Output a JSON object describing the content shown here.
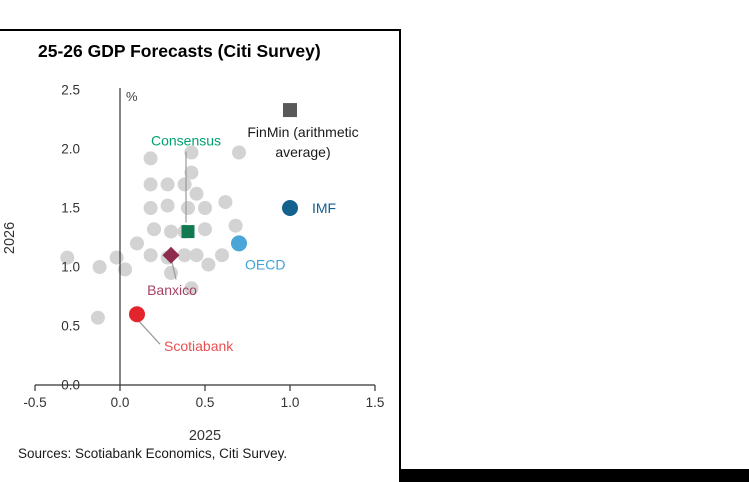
{
  "frame": {
    "sources": "Sources: Scotiabank Economics, Citi Survey."
  },
  "chart_data": {
    "type": "scatter",
    "title": "25-26 GDP Forecasts (Citi Survey)",
    "xlabel": "2025",
    "ylabel": "2026",
    "unit_label": "%",
    "xlim": [
      -0.5,
      1.5
    ],
    "ylim": [
      0.0,
      2.5
    ],
    "grid": false,
    "xticks": {
      "values": [
        -0.5,
        0.0,
        0.5,
        1.0,
        1.5
      ],
      "labels": [
        "-0.5",
        "0.0",
        "0.5",
        "1.0",
        "1.5"
      ]
    },
    "yticks": {
      "values": [
        0.0,
        0.5,
        1.0,
        1.5,
        2.0,
        2.5
      ],
      "labels": [
        "0.0",
        "0.5",
        "1.0",
        "1.5",
        "2.0",
        "2.5"
      ]
    },
    "zero_line_x": 0.0,
    "axis_color": "#333333",
    "series": [
      {
        "name": "survey-respondent-forecasts",
        "marker": "circle",
        "color": "#d3d3d3",
        "radius": 7,
        "points": [
          [
            -0.31,
            1.08
          ],
          [
            -0.12,
            1.0
          ],
          [
            -0.02,
            1.08
          ],
          [
            0.03,
            0.98
          ],
          [
            0.1,
            1.2
          ],
          [
            0.18,
            1.92
          ],
          [
            0.18,
            1.7
          ],
          [
            0.28,
            1.7
          ],
          [
            0.18,
            1.5
          ],
          [
            0.28,
            1.52
          ],
          [
            0.2,
            1.32
          ],
          [
            0.3,
            1.3
          ],
          [
            0.18,
            1.1
          ],
          [
            0.28,
            1.08
          ],
          [
            0.38,
            1.1
          ],
          [
            0.38,
            1.3
          ],
          [
            0.4,
            1.5
          ],
          [
            0.38,
            1.7
          ],
          [
            0.42,
            1.97
          ],
          [
            0.42,
            1.8
          ],
          [
            0.45,
            1.62
          ],
          [
            0.5,
            1.5
          ],
          [
            0.5,
            1.32
          ],
          [
            0.45,
            1.1
          ],
          [
            0.52,
            1.02
          ],
          [
            0.6,
            1.1
          ],
          [
            0.7,
            1.97
          ],
          [
            0.62,
            1.55
          ],
          [
            0.68,
            1.35
          ],
          [
            0.42,
            0.82
          ],
          [
            0.3,
            0.95
          ],
          [
            -0.13,
            0.57
          ]
        ]
      }
    ],
    "highlights": [
      {
        "label": "FinMin (arithmetic average)",
        "label_lines": [
          "FinMin (arithmetic",
          "average)"
        ],
        "x": 1.0,
        "y": 2.33,
        "marker": "square",
        "size": 14,
        "color": "#595959",
        "label_color": "#1a1a1a",
        "label_anchor": "middle",
        "label_offset": [
          13,
          27
        ],
        "line_height": 20
      },
      {
        "label": "IMF",
        "x": 1.0,
        "y": 1.5,
        "marker": "circle",
        "radius": 8,
        "color": "#14608e",
        "label_color": "#14608e",
        "label_anchor": "start",
        "label_offset": [
          22,
          5
        ]
      },
      {
        "label": "OECD",
        "x": 0.7,
        "y": 1.2,
        "marker": "circle",
        "radius": 8,
        "color": "#4aa5d8",
        "label_color": "#42a3da",
        "label_anchor": "start",
        "label_offset": [
          6,
          26
        ]
      },
      {
        "label": "Consensus",
        "x": 0.4,
        "y": 1.3,
        "marker": "square",
        "size": 13,
        "color": "#117a51",
        "label_color": "#00a170",
        "label_anchor": "middle",
        "label_offset": [
          -2,
          -86
        ],
        "leader": [
          [
            -2,
            -80
          ],
          [
            -2,
            -9
          ]
        ]
      },
      {
        "label": "Banxico",
        "x": 0.3,
        "y": 1.1,
        "marker": "diamond",
        "size": 12,
        "color": "#8e2c4d",
        "label_color": "#a84264",
        "label_anchor": "middle",
        "label_offset": [
          1,
          40
        ],
        "leader": [
          [
            1,
            7
          ],
          [
            5,
            24
          ]
        ]
      },
      {
        "label": "Scotiabank",
        "x": 0.1,
        "y": 0.6,
        "marker": "circle",
        "radius": 8,
        "color": "#e3242c",
        "label_color": "#ea4f4f",
        "label_anchor": "start",
        "label_offset": [
          27,
          37
        ],
        "leader": [
          [
            1,
            6
          ],
          [
            23,
            30
          ]
        ]
      }
    ]
  }
}
